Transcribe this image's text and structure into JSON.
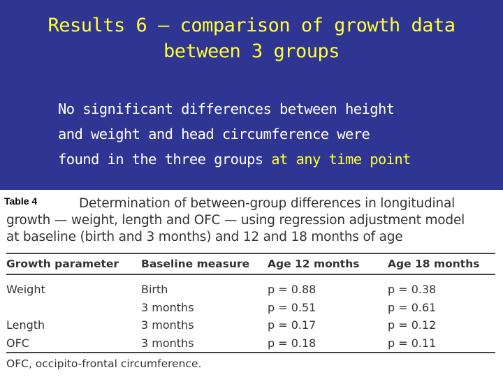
{
  "slide": {
    "title_line1": "Results 6 – comparison of growth data",
    "title_line2": "between 3 groups",
    "bullet_line1": "No significant differences between height",
    "bullet_line2": "and weight  and head circumference were",
    "bullet_line3_main": "found in the three groups ",
    "bullet_line3_highlight": "at any time point",
    "colors": {
      "background": "#2f3593",
      "title": "#ffff33",
      "text": "#ffffff",
      "highlight": "#ffff33"
    }
  },
  "table": {
    "label": "Table 4",
    "caption_line1": "Determination of between-group differences in longitudinal",
    "caption_line2": "growth — weight, length and OFC — using regression adjustment model",
    "caption_line3": "at baseline (birth and 3 months) and 12 and 18 months of age",
    "headers": [
      "Growth parameter",
      "Baseline measure",
      "Age 12 months",
      "Age 18 months"
    ],
    "rows": [
      [
        "Weight",
        "Birth",
        "p = 0.88",
        "p = 0.38"
      ],
      [
        "",
        "3 months",
        "p = 0.51",
        "p = 0.61"
      ],
      [
        "Length",
        "3 months",
        "p = 0.17",
        "p = 0.12"
      ],
      [
        "OFC",
        "3 months",
        "p = 0.18",
        "p = 0.11"
      ]
    ],
    "footnote": "OFC, occipito-frontal circumference."
  }
}
